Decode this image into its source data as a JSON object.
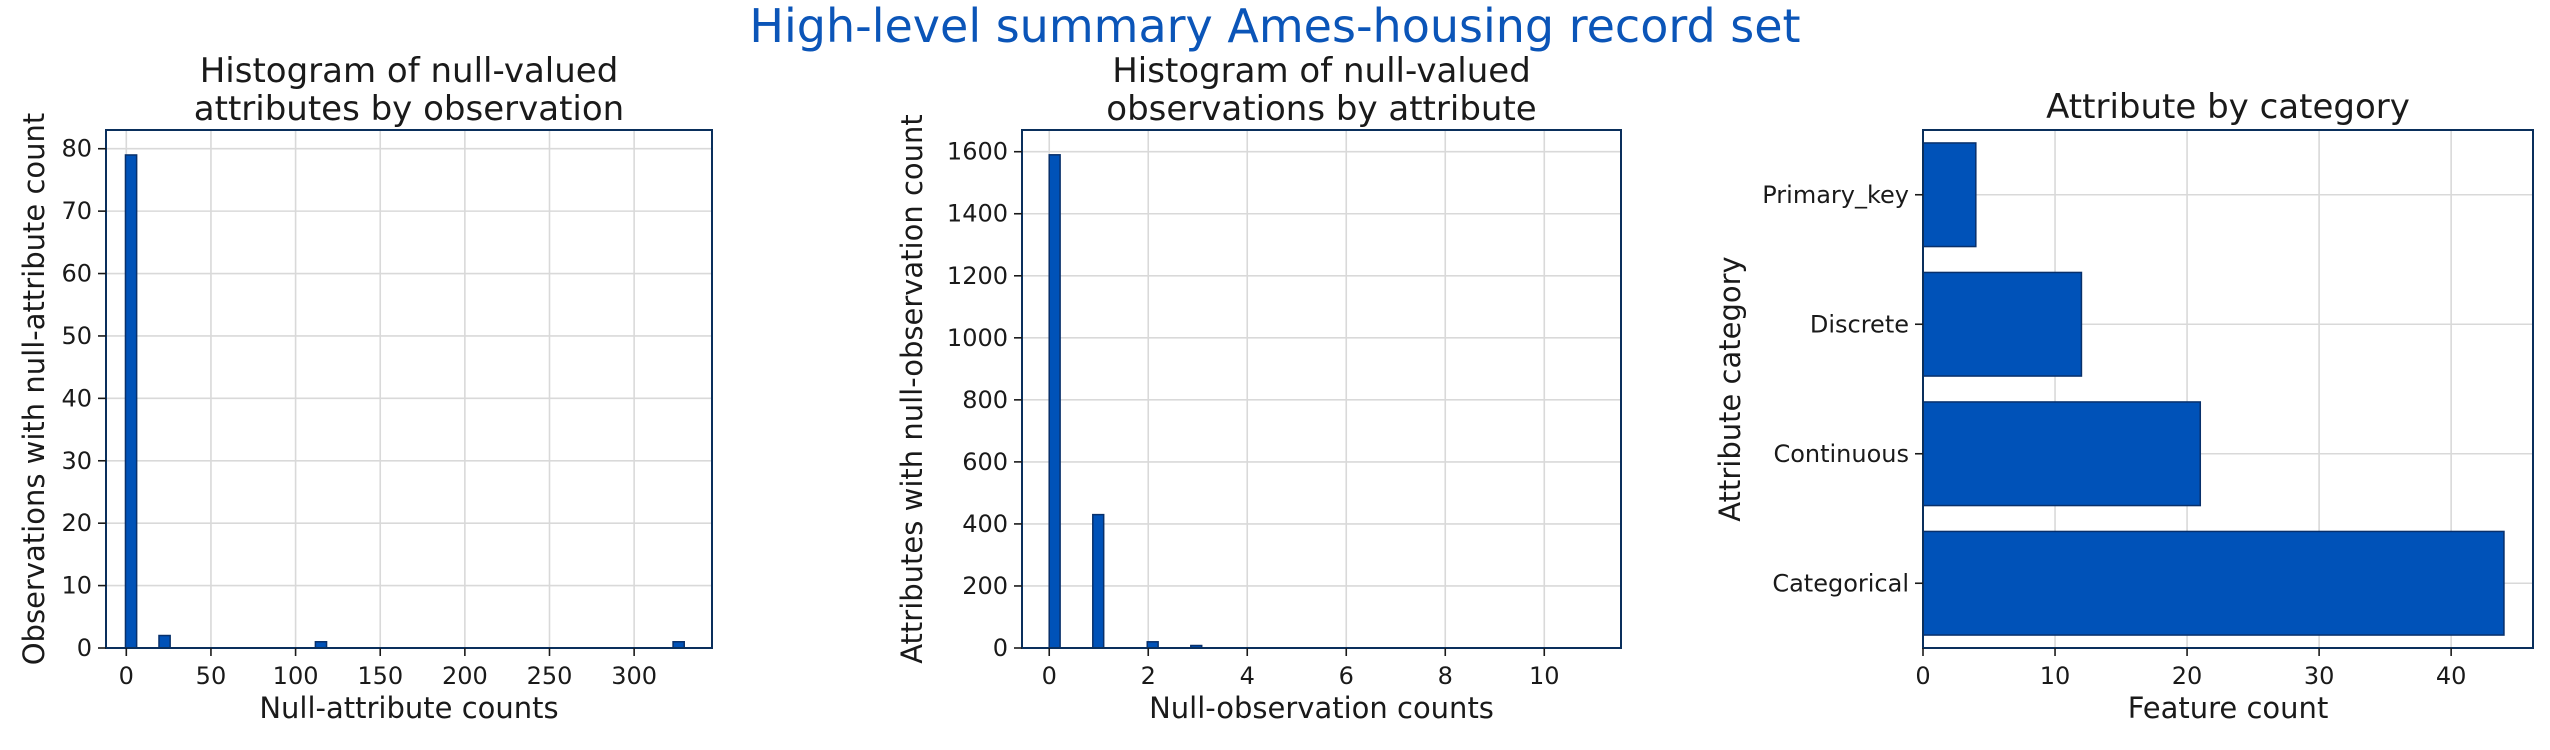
{
  "figure": {
    "suptitle": "High-level summary Ames-housing record set",
    "suptitle_color": "#0b55b8"
  },
  "colors": {
    "bar_fill": "#0052b8",
    "bar_edge": "#08306b",
    "axes_frame": "#0a2f5c",
    "grid": "#d9d9d9",
    "text": "#1a1a1a"
  },
  "chart_data": [
    {
      "type": "bar",
      "title": "Histogram of null-valued\nattributes by observation",
      "xlabel": "Null-attribute counts",
      "ylabel": "Observations with null-attribute count",
      "xlim": [
        -12,
        346
      ],
      "ylim": [
        0,
        83
      ],
      "xticks": [
        0,
        50,
        100,
        150,
        200,
        250,
        300
      ],
      "yticks": [
        0,
        10,
        20,
        30,
        40,
        50,
        60,
        70,
        80
      ],
      "grid": true,
      "bins": [
        {
          "x0": -0.5,
          "x1": 6.1,
          "value": 79
        },
        {
          "x0": 19.3,
          "x1": 25.9,
          "value": 2
        },
        {
          "x0": 111.7,
          "x1": 118.3,
          "value": 1
        },
        {
          "x0": 323.0,
          "x1": 329.6,
          "value": 1
        }
      ]
    },
    {
      "type": "bar",
      "title": "Histogram of null-valued\nobservations by attribute",
      "xlabel": "Null-observation counts",
      "ylabel": "Attributes with null-observation count",
      "xlim": [
        -0.55,
        11.55
      ],
      "ylim": [
        0,
        1670
      ],
      "xticks": [
        0,
        2,
        4,
        6,
        8,
        10
      ],
      "yticks": [
        0,
        200,
        400,
        600,
        800,
        1000,
        1200,
        1400,
        1600
      ],
      "grid": true,
      "bins": [
        {
          "x0": 0.0,
          "x1": 0.22,
          "value": 1590
        },
        {
          "x0": 0.88,
          "x1": 1.1,
          "value": 430
        },
        {
          "x0": 1.98,
          "x1": 2.2,
          "value": 20
        },
        {
          "x0": 2.86,
          "x1": 3.08,
          "value": 8
        }
      ]
    },
    {
      "type": "barh",
      "title": "Attribute by category",
      "xlabel": "Feature count",
      "ylabel": "Attribute category",
      "xlim": [
        0,
        46.2
      ],
      "xticks": [
        0,
        10,
        20,
        30,
        40
      ],
      "grid": true,
      "categories": [
        "Categorical",
        "Continuous",
        "Discrete",
        "Primary_key"
      ],
      "values": [
        44,
        21,
        12,
        4
      ]
    }
  ]
}
